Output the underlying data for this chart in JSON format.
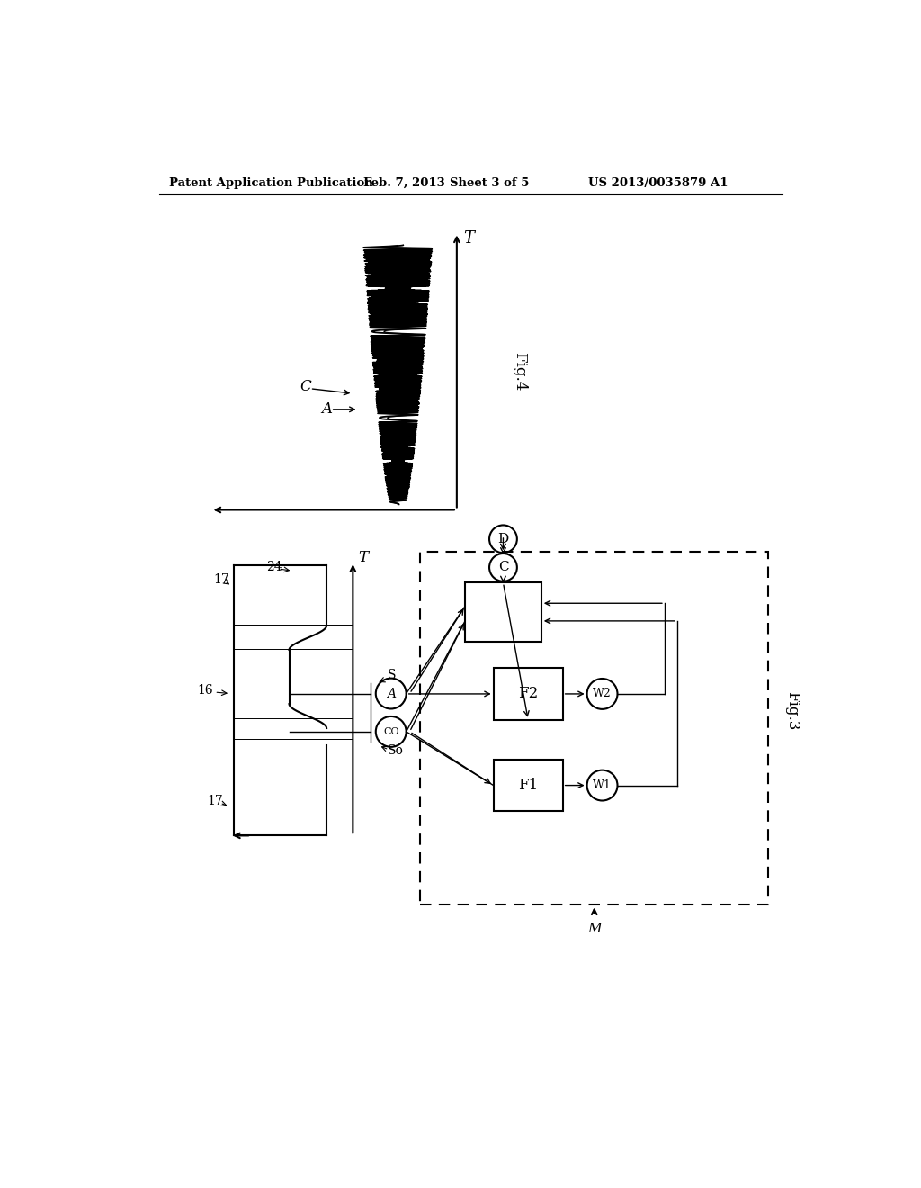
{
  "bg_color": "#ffffff",
  "header_text": "Patent Application Publication",
  "header_date": "Feb. 7, 2013",
  "header_sheet": "Sheet 3 of 5",
  "header_patent": "US 2013/0035879 A1",
  "fig4_label": "Fig.4",
  "fig3_label": "Fig.3",
  "label_T_top": "T",
  "label_T_mid": "T",
  "label_C_wave": "C",
  "label_A_wave": "A",
  "label_17_top": "17",
  "label_24": "24",
  "label_16": "16",
  "label_17_bot": "17",
  "label_S": "S",
  "label_SO": "So",
  "label_A_circ": "A",
  "label_CO": "CO",
  "label_F2": "F2",
  "label_F1": "F1",
  "label_W2": "W2",
  "label_W1": "W1",
  "label_C_circ": "C",
  "label_D_circ": "D",
  "label_M": "M"
}
